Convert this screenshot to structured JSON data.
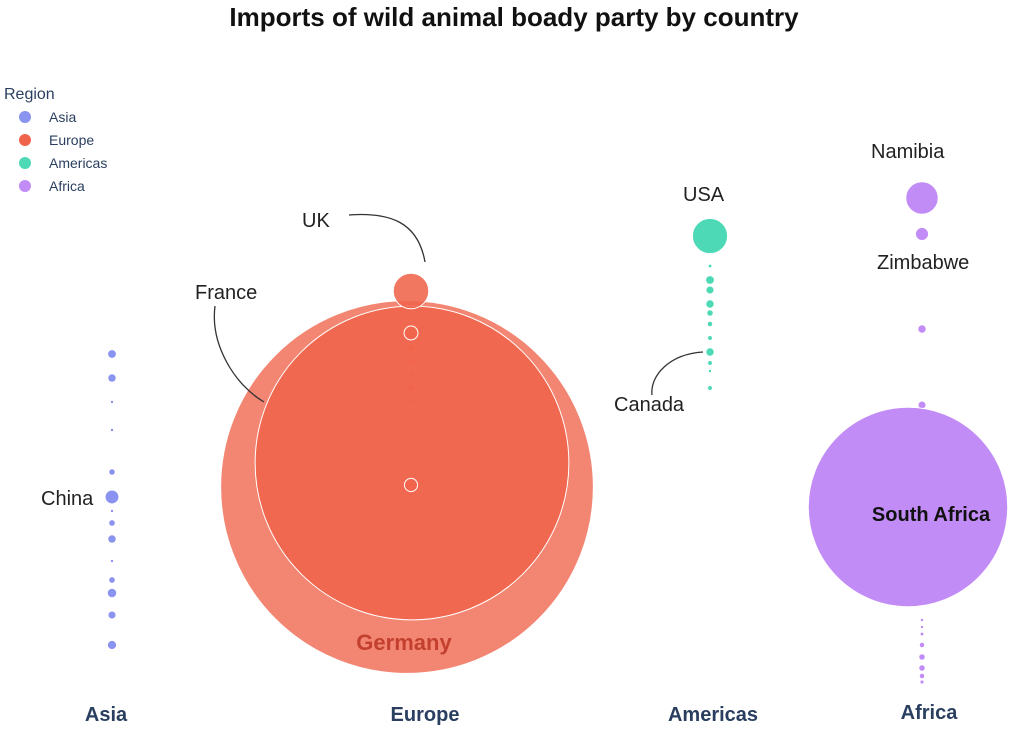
{
  "chart_data": {
    "type": "scatter",
    "title": "Imports of wild animal boady party by country",
    "legend": {
      "title": "Region",
      "placement": "top-left",
      "items": [
        {
          "label": "Asia",
          "color": "#8b93f0"
        },
        {
          "label": "Europe",
          "color": "#f0644b"
        },
        {
          "label": "Americas",
          "color": "#4ed9b6"
        },
        {
          "label": "Africa",
          "color": "#c28cf6"
        }
      ]
    },
    "categories": [
      "Asia",
      "Europe",
      "Americas",
      "Africa"
    ],
    "size_unit": "relative bubble area (imports)",
    "series": [
      {
        "name": "Asia",
        "color": "#8b93f0",
        "points": [
          {
            "country": "",
            "value": 60
          },
          {
            "country": "",
            "value": 55
          },
          {
            "country": "",
            "value": 2
          },
          {
            "country": "",
            "value": 2
          },
          {
            "country": "",
            "value": 30
          },
          {
            "country": "China",
            "value": 190
          },
          {
            "country": "",
            "value": 2
          },
          {
            "country": "",
            "value": 32
          },
          {
            "country": "",
            "value": 55
          },
          {
            "country": "",
            "value": 2
          },
          {
            "country": "",
            "value": 32
          },
          {
            "country": "",
            "value": 90
          },
          {
            "country": "",
            "value": 65
          },
          {
            "country": "",
            "value": 85
          }
        ]
      },
      {
        "name": "Europe",
        "color": "#f0644b",
        "points": [
          {
            "country": "Germany",
            "value": 136900
          },
          {
            "country": "France",
            "value": 97000
          },
          {
            "country": "UK",
            "value": 1240
          },
          {
            "country": "",
            "value": 190
          },
          {
            "country": "",
            "value": 38
          },
          {
            "country": "",
            "value": 28
          },
          {
            "country": "",
            "value": 16
          },
          {
            "country": "",
            "value": 35
          },
          {
            "country": "",
            "value": 20
          },
          {
            "country": "",
            "value": 2
          },
          {
            "country": "",
            "value": 170
          }
        ]
      },
      {
        "name": "Americas",
        "color": "#4ed9b6",
        "points": [
          {
            "country": "USA",
            "value": 1220
          },
          {
            "country": "",
            "value": 8
          },
          {
            "country": "",
            "value": 60
          },
          {
            "country": "",
            "value": 65
          },
          {
            "country": "",
            "value": 70
          },
          {
            "country": "",
            "value": 30
          },
          {
            "country": "",
            "value": 20
          },
          {
            "country": "",
            "value": 15
          },
          {
            "country": "Canada",
            "value": 55
          },
          {
            "country": "",
            "value": 15
          },
          {
            "country": "",
            "value": 3
          },
          {
            "country": "",
            "value": 15
          }
        ]
      },
      {
        "name": "Africa",
        "color": "#c28cf6",
        "points": [
          {
            "country": "Namibia",
            "value": 1040
          },
          {
            "country": "Zimbabwe",
            "value": 170
          },
          {
            "country": "",
            "value": 70
          },
          {
            "country": "",
            "value": 65
          },
          {
            "country": "",
            "value": 55
          },
          {
            "country": "South Africa",
            "value": 39200
          },
          {
            "country": "",
            "value": 3
          },
          {
            "country": "",
            "value": 3
          },
          {
            "country": "",
            "value": 8
          },
          {
            "country": "",
            "value": 20
          },
          {
            "country": "",
            "value": 30
          },
          {
            "country": "",
            "value": 30
          },
          {
            "country": "",
            "value": 20
          },
          {
            "country": "",
            "value": 10
          }
        ]
      }
    ],
    "annotations": [
      "UK",
      "France",
      "USA",
      "Canada",
      "Namibia",
      "Zimbabwe",
      "China",
      "Germany",
      "South Africa"
    ]
  }
}
